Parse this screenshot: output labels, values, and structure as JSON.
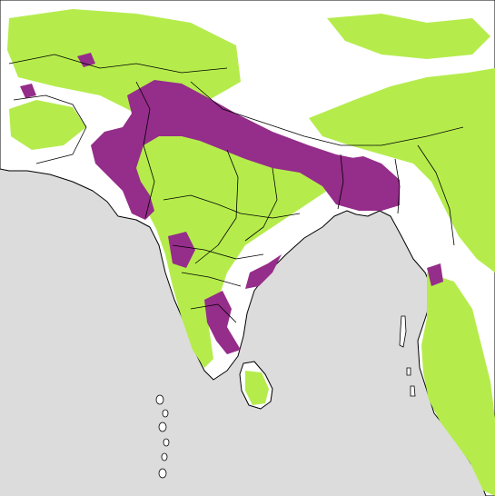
{
  "map": {
    "colors": {
      "ocean": "#dcdcdc",
      "land_white": "#ffffff",
      "green": "#b5ec4c",
      "purple": "#952d8a",
      "border": "#000000"
    }
  }
}
